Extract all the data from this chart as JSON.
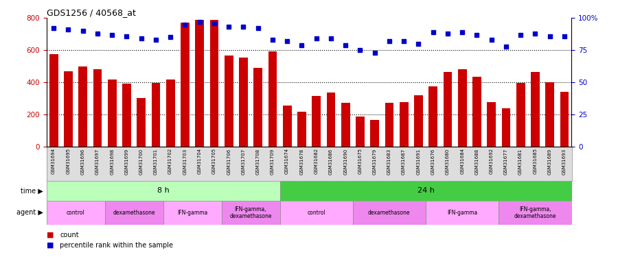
{
  "title": "GDS1256 / 40568_at",
  "samples": [
    "GSM31694",
    "GSM31695",
    "GSM31696",
    "GSM31697",
    "GSM31698",
    "GSM31699",
    "GSM31700",
    "GSM31701",
    "GSM31702",
    "GSM31703",
    "GSM31704",
    "GSM31705",
    "GSM31706",
    "GSM31707",
    "GSM31708",
    "GSM31709",
    "GSM31674",
    "GSM31678",
    "GSM31682",
    "GSM31686",
    "GSM31690",
    "GSM31675",
    "GSM31679",
    "GSM31683",
    "GSM31687",
    "GSM31691",
    "GSM31676",
    "GSM31680",
    "GSM31684",
    "GSM31688",
    "GSM31692",
    "GSM31677",
    "GSM31681",
    "GSM31685",
    "GSM31689",
    "GSM31693"
  ],
  "counts": [
    575,
    470,
    500,
    480,
    415,
    390,
    300,
    395,
    415,
    770,
    790,
    790,
    565,
    555,
    490,
    590,
    255,
    215,
    315,
    335,
    270,
    185,
    165,
    270,
    275,
    320,
    375,
    465,
    480,
    435,
    275,
    240,
    395,
    465,
    400,
    340
  ],
  "percentiles": [
    92,
    91,
    90,
    88,
    87,
    86,
    84,
    83,
    85,
    95,
    97,
    96,
    93,
    93,
    92,
    83,
    82,
    79,
    84,
    84,
    79,
    75,
    73,
    82,
    82,
    80,
    89,
    88,
    89,
    87,
    83,
    78,
    87,
    88,
    86,
    86
  ],
  "bar_color": "#cc0000",
  "dot_color": "#0000cc",
  "yticks_left": [
    0,
    200,
    400,
    600,
    800
  ],
  "yticks_right": [
    0,
    25,
    50,
    75,
    100
  ],
  "ytick_labels_right": [
    "0",
    "25",
    "50",
    "75",
    "100%"
  ],
  "grid_dotted_values": [
    200,
    400,
    600
  ],
  "plot_bg_color": "#ffffff",
  "xtick_area_color": "#dddddd",
  "time_8h_color": "#bbffbb",
  "time_24h_color": "#44cc44",
  "agent_colors": [
    "#ffaaff",
    "#ee88ee",
    "#ffaaff",
    "#ee88ee",
    "#ffaaff",
    "#ee88ee",
    "#ffaaff",
    "#ee88ee"
  ],
  "time_groups": [
    {
      "label": "8 h",
      "start": 0,
      "end": 16
    },
    {
      "label": "24 h",
      "start": 16,
      "end": 36
    }
  ],
  "agent_groups": [
    {
      "label": "control",
      "start": 0,
      "end": 4
    },
    {
      "label": "dexamethasone",
      "start": 4,
      "end": 8
    },
    {
      "label": "IFN-gamma",
      "start": 8,
      "end": 12
    },
    {
      "label": "IFN-gamma,\ndexamethasone",
      "start": 12,
      "end": 16
    },
    {
      "label": "control",
      "start": 16,
      "end": 21
    },
    {
      "label": "dexamethasone",
      "start": 21,
      "end": 26
    },
    {
      "label": "IFN-gamma",
      "start": 26,
      "end": 31
    },
    {
      "label": "IFN-gamma,\ndexamethasone",
      "start": 31,
      "end": 36
    }
  ]
}
